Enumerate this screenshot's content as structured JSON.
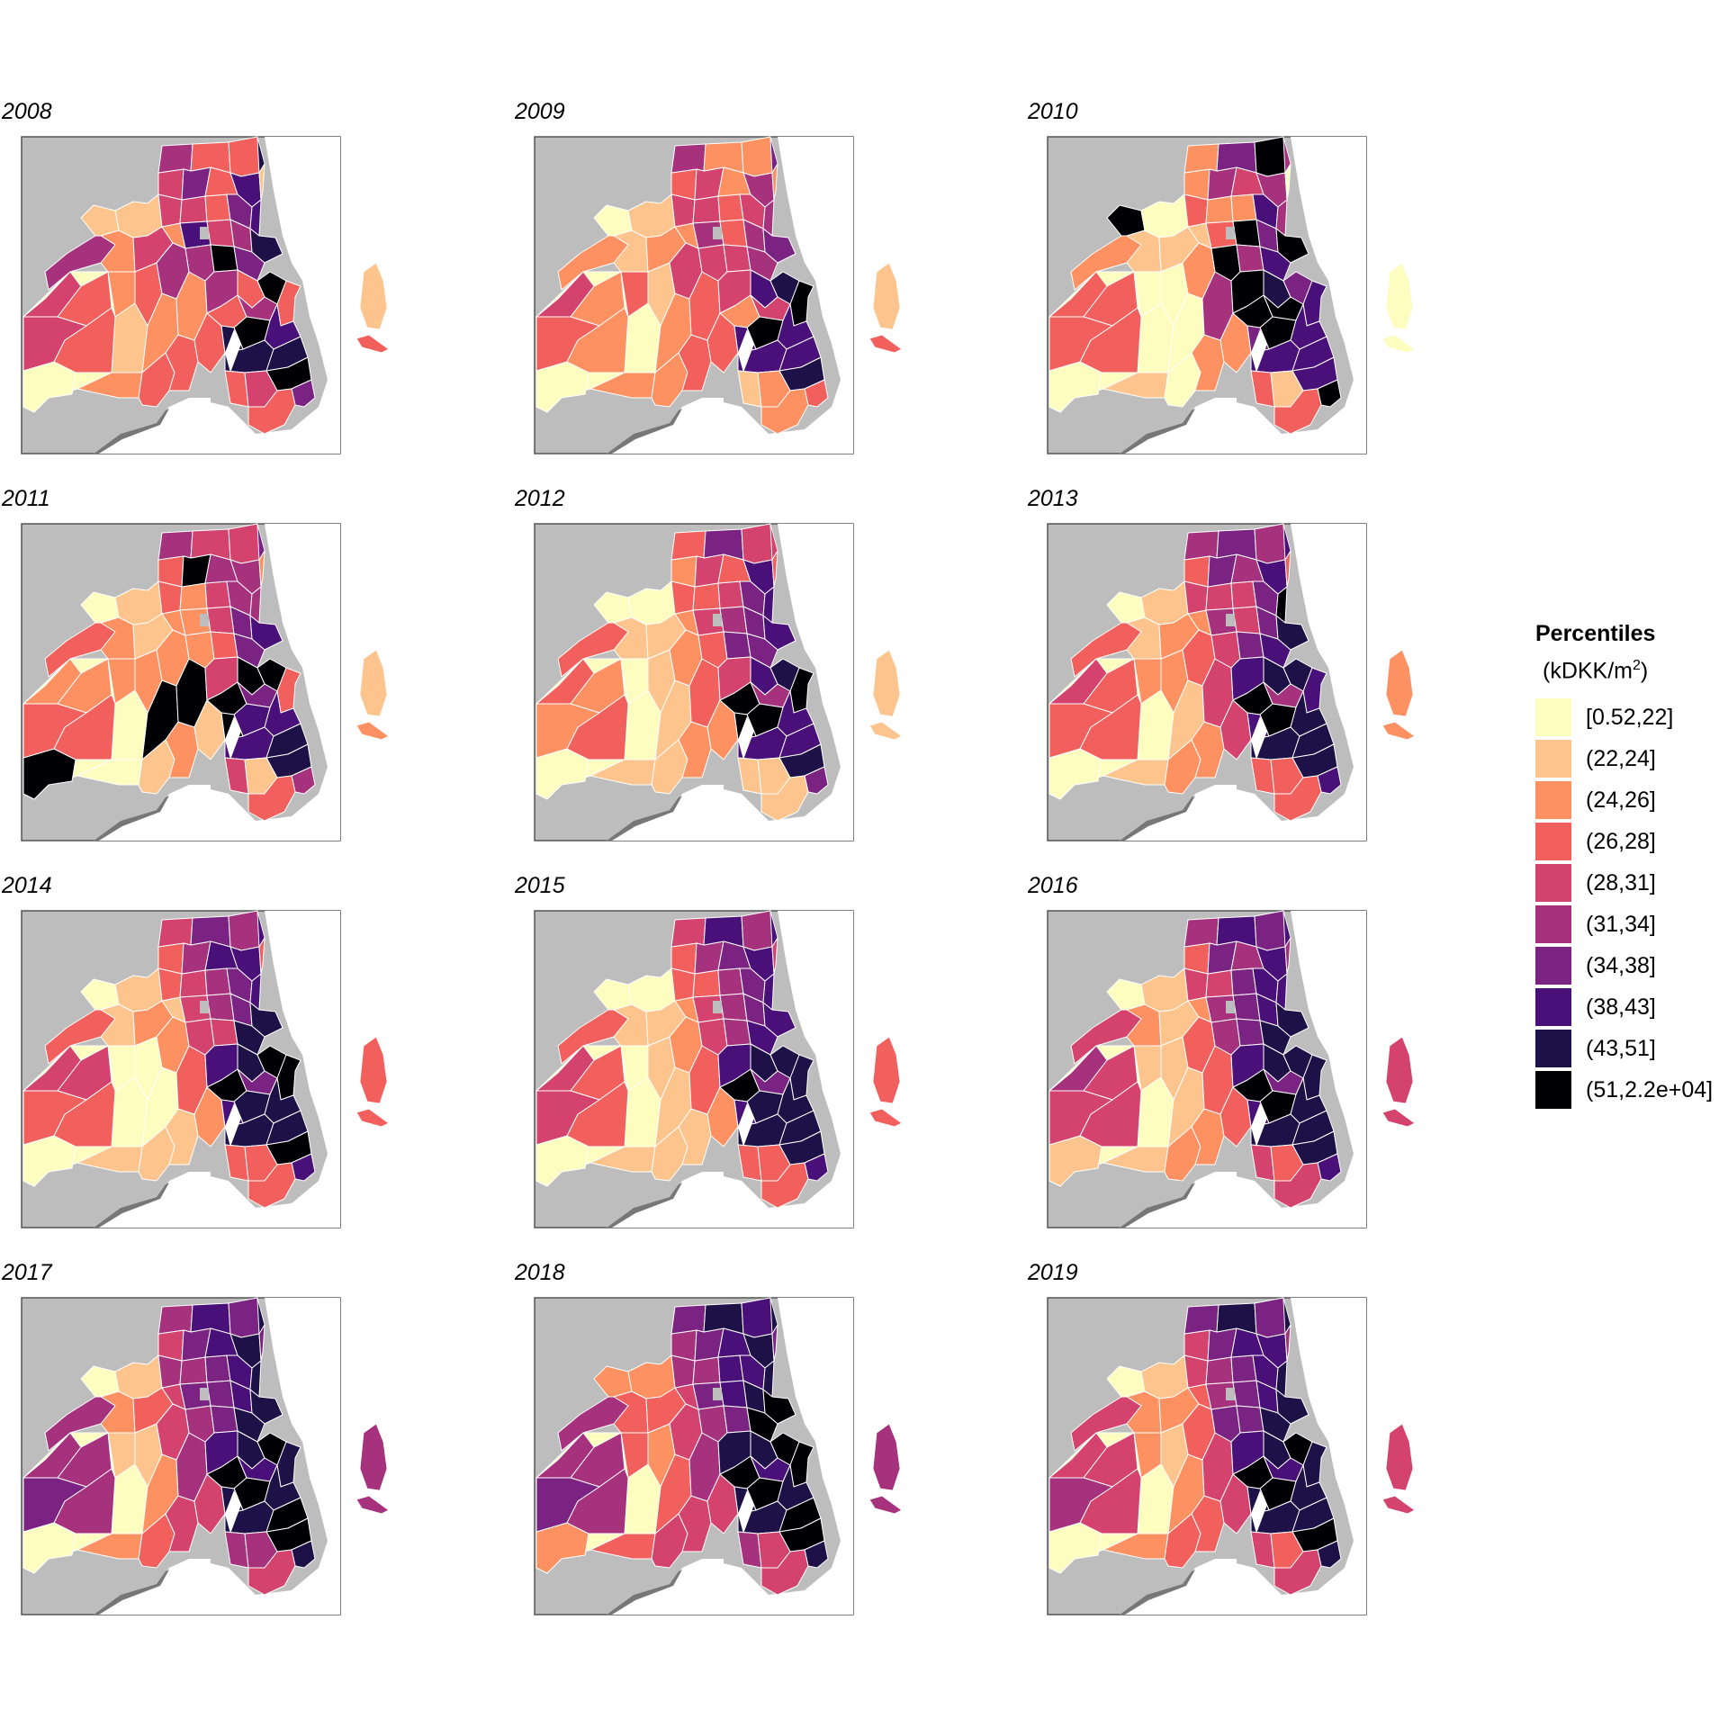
{
  "legend": {
    "title": "Percentiles",
    "units_prefix": "(kDKK/m",
    "units_sup": "2",
    "units_suffix": ")",
    "classes": [
      {
        "label": "[0.52,22]",
        "color": "#fcfdbf"
      },
      {
        "label": "(22,24]",
        "color": "#fdc58d"
      },
      {
        "label": "(24,26]",
        "color": "#fd9162"
      },
      {
        "label": "(26,28]",
        "color": "#f1605d"
      },
      {
        "label": "(28,31]",
        "color": "#d3436e"
      },
      {
        "label": "(31,34]",
        "color": "#a6317d"
      },
      {
        "label": "(34,38]",
        "color": "#7b2382"
      },
      {
        "label": "(38,43]",
        "color": "#4a1079"
      },
      {
        "label": "(43,51]",
        "color": "#1d1147"
      },
      {
        "label": "(51,2.2e+04]",
        "color": "#000004"
      }
    ]
  },
  "colors": {
    "background_land": "#bdbdbd",
    "frame_border": "#555555",
    "region_border": "#ffffff",
    "coast_strip": "#777777"
  },
  "panels": [
    {
      "year": "2008",
      "classes": [
        0,
        0,
        2,
        1,
        1,
        2,
        1,
        3,
        2,
        2,
        3,
        3,
        4,
        2,
        5,
        2,
        3,
        4,
        4,
        5,
        4,
        6,
        7,
        3,
        5,
        3,
        4,
        3,
        9,
        5,
        3,
        6,
        5,
        6,
        3,
        3,
        7,
        7,
        8,
        9,
        5,
        9,
        8,
        3,
        7,
        8,
        8,
        9,
        6,
        3,
        4,
        3,
        5,
        4,
        3,
        3,
        4,
        8,
        1,
        3,
        1
      ]
    },
    {
      "year": "2009",
      "classes": [
        0,
        0,
        3,
        0,
        0,
        1,
        1,
        1,
        2,
        2,
        2,
        3,
        2,
        2,
        4,
        3,
        3,
        3,
        4,
        5,
        4,
        4,
        5,
        2,
        4,
        3,
        3,
        2,
        4,
        4,
        2,
        4,
        5,
        5,
        7,
        2,
        5,
        5,
        6,
        8,
        4,
        9,
        7,
        9,
        7,
        7,
        7,
        8,
        3,
        1,
        2,
        2,
        2,
        4,
        2,
        2,
        3,
        6,
        1,
        3,
        2
      ]
    },
    {
      "year": "2010",
      "classes": [
        0,
        0,
        0,
        0,
        9,
        1,
        0,
        0,
        0,
        1,
        0,
        2,
        1,
        1,
        2,
        5,
        2,
        2,
        3,
        2,
        2,
        5,
        3,
        6,
        9,
        2,
        9,
        4,
        5,
        9,
        9,
        7,
        6,
        7,
        8,
        9,
        5,
        5,
        9,
        6,
        9,
        9,
        6,
        7,
        7,
        7,
        7,
        7,
        9,
        3,
        1,
        3,
        2,
        3,
        3,
        3,
        3,
        5,
        0,
        0,
        0
      ]
    },
    {
      "year": "2011",
      "classes": [
        0,
        9,
        2,
        0,
        0,
        2,
        1,
        2,
        9,
        0,
        1,
        2,
        1,
        2,
        2,
        9,
        1,
        3,
        3,
        5,
        2,
        9,
        2,
        4,
        2,
        4,
        4,
        5,
        3,
        4,
        9,
        5,
        6,
        6,
        9,
        4,
        5,
        5,
        7,
        9,
        6,
        7,
        9,
        3,
        7,
        7,
        8,
        8,
        5,
        4,
        1,
        3,
        3,
        2,
        2,
        3,
        3,
        6,
        1,
        2,
        2
      ]
    },
    {
      "year": "2012",
      "classes": [
        0,
        0,
        0,
        0,
        0,
        1,
        0,
        1,
        1,
        1,
        1,
        2,
        1,
        2,
        2,
        3,
        2,
        2,
        3,
        3,
        3,
        4,
        4,
        6,
        3,
        4,
        5,
        3,
        6,
        4,
        9,
        6,
        6,
        6,
        7,
        4,
        7,
        7,
        7,
        8,
        5,
        9,
        9,
        9,
        7,
        7,
        7,
        8,
        6,
        1,
        1,
        1,
        3,
        3,
        2,
        3,
        2,
        4,
        1,
        1,
        3
      ]
    },
    {
      "year": "2013",
      "classes": [
        0,
        0,
        2,
        0,
        0,
        1,
        1,
        2,
        1,
        1,
        2,
        2,
        2,
        2,
        3,
        4,
        4,
        3,
        4,
        5,
        4,
        6,
        5,
        6,
        4,
        4,
        4,
        5,
        6,
        7,
        9,
        6,
        6,
        7,
        8,
        5,
        7,
        9,
        8,
        8,
        5,
        9,
        7,
        7,
        8,
        8,
        8,
        8,
        7,
        3,
        3,
        3,
        3,
        4,
        3,
        3,
        3,
        7,
        2,
        2,
        3
      ]
    },
    {
      "year": "2014",
      "classes": [
        0,
        0,
        0,
        0,
        0,
        1,
        1,
        0,
        0,
        1,
        1,
        1,
        2,
        1,
        2,
        3,
        2,
        3,
        3,
        4,
        4,
        5,
        4,
        6,
        4,
        5,
        5,
        7,
        4,
        7,
        9,
        6,
        6,
        8,
        8,
        5,
        7,
        7,
        8,
        9,
        6,
        8,
        7,
        9,
        8,
        8,
        8,
        9,
        7,
        3,
        3,
        3,
        3,
        4,
        4,
        3,
        3,
        7,
        3,
        3,
        3
      ]
    },
    {
      "year": "2015",
      "classes": [
        0,
        0,
        0,
        0,
        0,
        1,
        0,
        1,
        1,
        1,
        1,
        1,
        1,
        2,
        2,
        3,
        2,
        3,
        3,
        4,
        3,
        5,
        4,
        7,
        4,
        5,
        5,
        6,
        5,
        7,
        9,
        6,
        6,
        7,
        8,
        5,
        7,
        7,
        7,
        8,
        6,
        8,
        7,
        8,
        8,
        8,
        8,
        8,
        7,
        3,
        3,
        3,
        3,
        4,
        3,
        3,
        4,
        7,
        3,
        3,
        4
      ]
    },
    {
      "year": "2016",
      "classes": [
        0,
        1,
        1,
        0,
        0,
        2,
        1,
        1,
        1,
        1,
        2,
        2,
        1,
        2,
        3,
        3,
        3,
        3,
        4,
        5,
        4,
        6,
        5,
        7,
        5,
        6,
        6,
        5,
        6,
        7,
        9,
        7,
        7,
        8,
        8,
        6,
        7,
        7,
        8,
        8,
        6,
        9,
        7,
        8,
        8,
        8,
        8,
        8,
        7,
        4,
        3,
        4,
        4,
        5,
        4,
        4,
        4,
        7,
        4,
        4,
        5
      ]
    },
    {
      "year": "2017",
      "classes": [
        0,
        0,
        1,
        0,
        0,
        2,
        1,
        1,
        2,
        2,
        3,
        4,
        3,
        4,
        4,
        5,
        4,
        4,
        5,
        5,
        5,
        6,
        6,
        7,
        5,
        6,
        6,
        7,
        6,
        7,
        9,
        7,
        7,
        8,
        8,
        6,
        8,
        8,
        8,
        9,
        7,
        9,
        8,
        8,
        8,
        8,
        9,
        9,
        8,
        5,
        5,
        4,
        5,
        5,
        5,
        5,
        6,
        8,
        5,
        5,
        6
      ]
    },
    {
      "year": "2018",
      "classes": [
        0,
        2,
        3,
        0,
        2,
        3,
        2,
        2,
        3,
        3,
        4,
        4,
        3,
        4,
        4,
        5,
        4,
        5,
        5,
        6,
        5,
        6,
        6,
        8,
        5,
        7,
        7,
        7,
        6,
        8,
        9,
        7,
        8,
        9,
        8,
        7,
        8,
        8,
        9,
        9,
        7,
        9,
        8,
        9,
        8,
        8,
        9,
        9,
        8,
        5,
        4,
        4,
        5,
        5,
        5,
        5,
        6,
        8,
        5,
        5,
        6
      ]
    },
    {
      "year": "2019",
      "classes": [
        0,
        0,
        2,
        0,
        0,
        2,
        1,
        1,
        2,
        2,
        3,
        3,
        2,
        3,
        3,
        4,
        4,
        4,
        4,
        6,
        5,
        6,
        5,
        8,
        6,
        6,
        6,
        7,
        6,
        7,
        9,
        7,
        7,
        8,
        8,
        6,
        7,
        8,
        8,
        9,
        7,
        9,
        8,
        8,
        8,
        8,
        8,
        9,
        8,
        4,
        3,
        4,
        4,
        4,
        4,
        4,
        5,
        8,
        4,
        4,
        5
      ]
    }
  ]
}
